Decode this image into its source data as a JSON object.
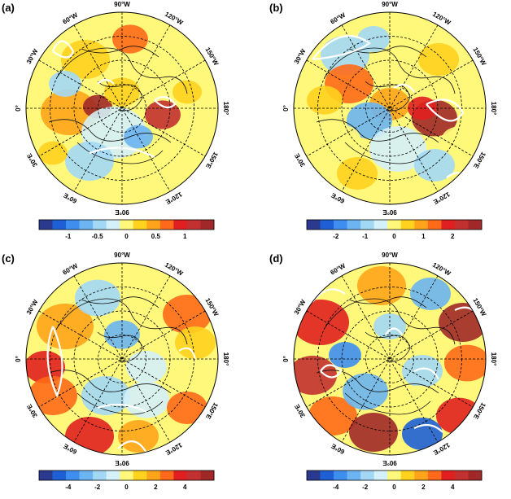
{
  "panels": [
    {
      "label": "(a)",
      "lon_labels": [
        "90°W",
        "120°W",
        "150°W",
        "180°",
        "150°E",
        "120°E",
        "90°E",
        "60°E",
        "30°E",
        "0°",
        "30°W",
        "60°W"
      ],
      "colorbar": {
        "ticks": [
          "-1",
          "-0.5",
          "0",
          "0.5",
          "1"
        ],
        "min": -1.5,
        "max": 1.5
      }
    },
    {
      "label": "(b)",
      "lon_labels": [
        "90°W",
        "120°W",
        "150°W",
        "180°",
        "150°E",
        "120°E",
        "90°E",
        "60°E",
        "30°E",
        "0°",
        "30°W",
        "60°W"
      ],
      "colorbar": {
        "ticks": [
          "-2",
          "-1",
          "0",
          "1",
          "2"
        ],
        "min": -3,
        "max": 3
      }
    },
    {
      "label": "(c)",
      "lon_labels": [
        "90°W",
        "120°W",
        "150°W",
        "180°",
        "150°E",
        "120°E",
        "90°E",
        "60°E",
        "30°E",
        "0°",
        "30°W",
        "60°W"
      ],
      "colorbar": {
        "ticks": [
          "-4",
          "-2",
          "0",
          "2",
          "4"
        ],
        "min": -6,
        "max": 6
      }
    },
    {
      "label": "(d)",
      "lon_labels": [
        "90°W",
        "120°W",
        "150°W",
        "180°",
        "150°E",
        "120°E",
        "90°E",
        "60°E",
        "30°E",
        "0°",
        "30°W",
        "60°W"
      ],
      "colorbar": {
        "ticks": [
          "-4",
          "-2",
          "0",
          "2",
          "4"
        ],
        "min": -6,
        "max": 6
      }
    }
  ],
  "palette": [
    "#2b3a8f",
    "#1f5fd6",
    "#3e8ef0",
    "#6cb4f2",
    "#a3d8f5",
    "#d4f0f8",
    "#fff87a",
    "#ffd21e",
    "#ffa41a",
    "#ff6a1a",
    "#e02020",
    "#c23030",
    "#a02828"
  ]
}
